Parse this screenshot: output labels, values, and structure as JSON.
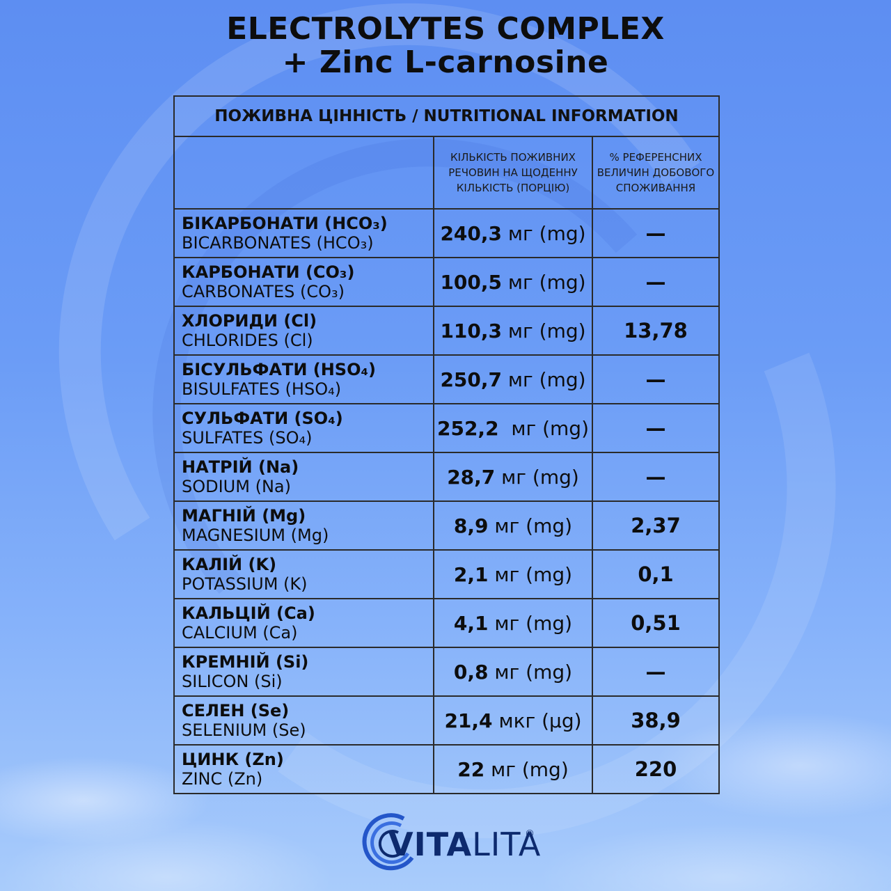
{
  "title": {
    "line1": "ELECTROLYTES COMPLEX",
    "line2": "+ Zinc L-carnosine"
  },
  "table": {
    "header": "ПОЖИВНА ЦІННІСТЬ / NUTRITIONAL INFORMATION",
    "col_amount": "КІЛЬКІСТЬ ПОЖИВНИХ РЕЧОВИН НА ЩОДЕННУ КІЛЬКІСТЬ (ПОРЦІЮ)",
    "col_percent": "% РЕФЕРЕНСНИХ ВЕЛИЧИН ДОБОВОГО СПОЖИВАННЯ",
    "rows": [
      {
        "ua": "БІКАРБОНАТИ (HCO₃)",
        "en": "BICARBONATES (HCO₃)",
        "amount": "240,3",
        "unit": " мг (mg)",
        "pct": "—"
      },
      {
        "ua": "КАРБОНАТИ (CO₃)",
        "en": "CARBONATES (CO₃)",
        "amount": "100,5",
        "unit": " мг (mg)",
        "pct": "—"
      },
      {
        "ua": "ХЛОРИДИ (Cl)",
        "en": "CHLORIDES (Cl)",
        "amount": "110,3",
        "unit": " мг (mg)",
        "pct": "13,78"
      },
      {
        "ua": "БІСУЛЬФАТИ (HSO₄)",
        "en": "BISULFATES (HSO₄)",
        "amount": "250,7",
        "unit": " мг (mg)",
        "pct": "—"
      },
      {
        "ua": "СУЛЬФАТИ (SO₄)",
        "en": "SULFATES (SO₄)",
        "amount": "252,2",
        "unit": "  мг (mg)",
        "pct": "—"
      },
      {
        "ua": "НАТРІЙ (Na)",
        "en": "SODIUM (Na)",
        "amount": "28,7",
        "unit": " мг (mg)",
        "pct": "—"
      },
      {
        "ua": "МАГНІЙ (Mg)",
        "en": "MAGNESIUM (Mg)",
        "amount": "8,9",
        "unit": " мг (mg)",
        "pct": "2,37"
      },
      {
        "ua": "КАЛІЙ (K)",
        "en": "POTASSIUM (K)",
        "amount": "2,1",
        "unit": " мг (mg)",
        "pct": "0,1"
      },
      {
        "ua": "КАЛЬЦІЙ (Ca)",
        "en": "CALCIUM (Ca)",
        "amount": "4,1",
        "unit": " мг (mg)",
        "pct": "0,51"
      },
      {
        "ua": "КРЕМНІЙ (Si)",
        "en": "SILICON (Si)",
        "amount": "0,8",
        "unit": " мг (mg)",
        "pct": "—"
      },
      {
        "ua": "СЕЛЕН (Se)",
        "en": "SELENIUM (Se)",
        "amount": "21,4",
        "unit": " мкг (µg)",
        "pct": "38,9"
      },
      {
        "ua": "ЦИНК (Zn)",
        "en": "ZINC (Zn)",
        "amount": "22",
        "unit": " мг (mg)",
        "pct": "220"
      }
    ]
  },
  "logo": {
    "text_bold": "VITA",
    "text_light": "LITA",
    "reg": "®"
  },
  "colors": {
    "background_top": "#5d8ef2",
    "background_bottom": "#a9ccfb",
    "logo_blue": "#0d2a6e",
    "border": "#2a2a2a"
  }
}
